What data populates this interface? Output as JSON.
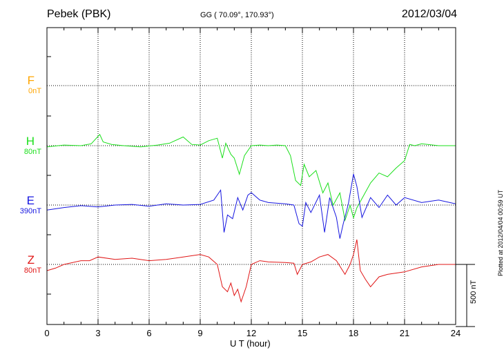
{
  "header": {
    "station": "Pebek (PBK)",
    "coords": "GG ( 70.09°, 170.93°)",
    "date": "2012/03/04"
  },
  "side_note": "Plotted at 2012/04/04 00:59 UT",
  "scale_bar": {
    "label": "500 nT",
    "value_nT": 500
  },
  "chart_data": {
    "type": "line",
    "title": "Pebek (PBK)",
    "xlabel": "U T (hour)",
    "ylabel": "",
    "xlim": [
      0,
      24
    ],
    "xticks": [
      0,
      3,
      6,
      9,
      12,
      15,
      18,
      21,
      24
    ],
    "grid": true,
    "series": [
      {
        "name": "F",
        "baseline": "0nT",
        "color": "#ffa500",
        "x": [],
        "y": []
      },
      {
        "name": "H",
        "baseline": "80nT",
        "color": "#1adf1a",
        "x": [
          0,
          1,
          2,
          2.6,
          3.1,
          3.3,
          3.8,
          4.5,
          5.5,
          6.5,
          7.2,
          8,
          8.5,
          9,
          9.5,
          10,
          10.3,
          10.5,
          10.8,
          11,
          11.3,
          11.6,
          12,
          12.5,
          13,
          13.5,
          14,
          14.3,
          14.6,
          14.9,
          15.1,
          15.4,
          15.8,
          16.2,
          16.5,
          16.8,
          17.2,
          17.5,
          17.8,
          18,
          18.2,
          18.6,
          19,
          19.5,
          20,
          20.5,
          21,
          21.3,
          21.6,
          22,
          23,
          24
        ],
        "y": [
          -10,
          5,
          0,
          15,
          90,
          30,
          10,
          0,
          -10,
          5,
          20,
          70,
          10,
          5,
          40,
          60,
          -100,
          20,
          -70,
          -100,
          -230,
          -80,
          0,
          5,
          0,
          5,
          0,
          -80,
          -280,
          -320,
          -150,
          -250,
          -200,
          -380,
          -300,
          -480,
          -380,
          -600,
          -480,
          -580,
          -500,
          -400,
          -300,
          -220,
          -250,
          -180,
          -120,
          10,
          0,
          15,
          0,
          0
        ]
      },
      {
        "name": "E",
        "baseline": "390nT",
        "color": "#1515e0",
        "x": [
          0,
          1,
          2,
          3,
          4,
          5,
          6,
          7,
          8,
          9,
          9.8,
          10.2,
          10.4,
          10.6,
          10.9,
          11.2,
          11.5,
          11.8,
          12,
          12.5,
          13,
          14,
          14.5,
          14.8,
          15,
          15.2,
          15.5,
          16,
          16.3,
          16.6,
          17,
          17.2,
          17.4,
          17.7,
          18,
          18.2,
          18.5,
          19,
          19.5,
          20,
          20.5,
          21,
          22,
          23,
          24
        ],
        "y": [
          -40,
          -20,
          -5,
          -15,
          0,
          5,
          -10,
          10,
          0,
          5,
          40,
          120,
          -220,
          -80,
          -110,
          60,
          -40,
          80,
          100,
          40,
          20,
          10,
          0,
          -150,
          -170,
          20,
          -60,
          80,
          -220,
          60,
          -100,
          -270,
          -150,
          10,
          250,
          150,
          -100,
          60,
          -20,
          80,
          0,
          60,
          20,
          40,
          10
        ]
      },
      {
        "name": "Z",
        "baseline": "80nT",
        "color": "#e01515",
        "x": [
          0,
          0.5,
          1,
          2,
          2.5,
          3,
          4,
          5,
          6,
          7,
          8,
          9,
          9.5,
          10,
          10.3,
          10.6,
          10.8,
          11,
          11.2,
          11.4,
          11.7,
          12,
          12.5,
          13,
          14,
          14.5,
          14.7,
          15,
          15.5,
          16,
          16.5,
          17,
          17.5,
          17.8,
          18,
          18.2,
          18.4,
          18.7,
          19,
          19.5,
          20,
          21,
          22,
          23,
          24
        ],
        "y": [
          -50,
          -30,
          0,
          30,
          30,
          60,
          40,
          50,
          30,
          40,
          60,
          80,
          60,
          0,
          -180,
          -220,
          -150,
          -250,
          -200,
          -300,
          -180,
          0,
          30,
          20,
          15,
          10,
          -80,
          0,
          20,
          60,
          80,
          30,
          -80,
          0,
          80,
          200,
          -50,
          -120,
          -180,
          -100,
          -80,
          -60,
          -20,
          0,
          0
        ]
      }
    ]
  }
}
